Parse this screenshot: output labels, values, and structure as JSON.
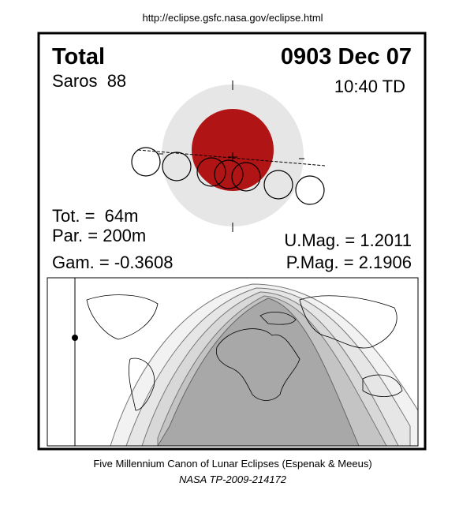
{
  "header": {
    "url": "http://eclipse.gsfc.nasa.gov/eclipse.html"
  },
  "eclipse": {
    "type": "Total",
    "date": "0903 Dec 07",
    "saros": "Saros  88",
    "time": "10:40 TD",
    "tot": "Tot. =  64m",
    "par": "Par. = 200m",
    "gam": "Gam. = -0.3608",
    "umag": "U.Mag. = 1.2011",
    "pmag": "P.Mag. = 2.1906"
  },
  "footer": {
    "line1": "Five Millennium Canon of Lunar Eclipses (Espenak & Meeus)",
    "line2": "NASA TP-2009-214172"
  }
}
